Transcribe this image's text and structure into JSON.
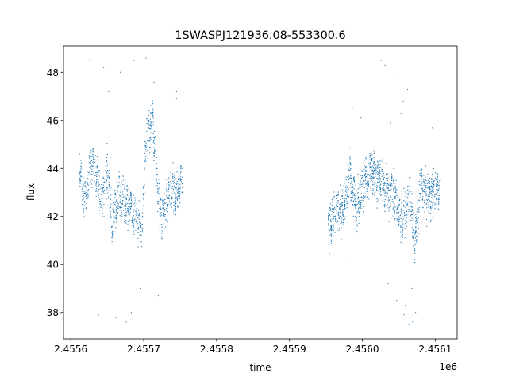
{
  "chart_data": {
    "type": "scatter",
    "title": "1SWASPJ121936.08-553300.6",
    "xlabel": "time",
    "ylabel": "flux",
    "x_offset_label": "1e6",
    "xlim": [
      2.45559,
      2.45613
    ],
    "ylim": [
      36.9,
      49.1
    ],
    "x_ticks": [
      {
        "value": 2.4556,
        "label": "2.4556"
      },
      {
        "value": 2.4557,
        "label": "2.4557"
      },
      {
        "value": 2.4558,
        "label": "2.4558"
      },
      {
        "value": 2.4559,
        "label": "2.4559"
      },
      {
        "value": 2.456,
        "label": "2.4560"
      },
      {
        "value": 2.4561,
        "label": "2.4561"
      }
    ],
    "y_ticks": [
      {
        "value": 38,
        "label": "38"
      },
      {
        "value": 40,
        "label": "40"
      },
      {
        "value": 42,
        "label": "42"
      },
      {
        "value": 44,
        "label": "44"
      },
      {
        "value": 46,
        "label": "46"
      },
      {
        "value": 48,
        "label": "48"
      }
    ],
    "grid": false,
    "point_color": "#1f77b4",
    "segments": [
      {
        "x_start": 2.455612,
        "x_end": 2.455753,
        "n_points": 1100,
        "trend": [
          [
            2.455612,
            44.3
          ],
          [
            2.455618,
            42.6
          ],
          [
            2.45563,
            44.4
          ],
          [
            2.455642,
            42.6
          ],
          [
            2.45565,
            44.0
          ],
          [
            2.455657,
            41.5
          ],
          [
            2.455665,
            43.0
          ],
          [
            2.455675,
            42.6
          ],
          [
            2.455688,
            42.2
          ],
          [
            2.455697,
            41.2
          ],
          [
            2.455703,
            45.0
          ],
          [
            2.455712,
            46.0
          ],
          [
            2.455718,
            43.5
          ],
          [
            2.455725,
            41.8
          ],
          [
            2.455732,
            42.8
          ],
          [
            2.45574,
            43.2
          ],
          [
            2.455746,
            43.0
          ],
          [
            2.455753,
            43.8
          ]
        ],
        "scatter": 0.7
      },
      {
        "x_start": 2.455953,
        "x_end": 2.456106,
        "n_points": 1400,
        "trend": [
          [
            2.455953,
            41.5
          ],
          [
            2.455962,
            42.3
          ],
          [
            2.455972,
            42.2
          ],
          [
            2.455983,
            43.8
          ],
          [
            2.455992,
            42.3
          ],
          [
            2.456003,
            43.6
          ],
          [
            2.456015,
            43.8
          ],
          [
            2.456025,
            43.5
          ],
          [
            2.456035,
            43.0
          ],
          [
            2.456045,
            42.8
          ],
          [
            2.456055,
            41.8
          ],
          [
            2.456065,
            43.0
          ],
          [
            2.456072,
            40.8
          ],
          [
            2.45608,
            43.4
          ],
          [
            2.456092,
            42.8
          ],
          [
            2.456106,
            43.3
          ]
        ],
        "scatter": 0.75
      }
    ],
    "outliers": [
      [
        2.455626,
        48.5
      ],
      [
        2.455645,
        48.2
      ],
      [
        2.455652,
        47.2
      ],
      [
        2.455668,
        48.0
      ],
      [
        2.455687,
        48.5
      ],
      [
        2.455703,
        48.6
      ],
      [
        2.455714,
        47.6
      ],
      [
        2.455745,
        47.2
      ],
      [
        2.455745,
        46.9
      ],
      [
        2.455662,
        37.8
      ],
      [
        2.455676,
        37.6
      ],
      [
        2.455683,
        38.0
      ],
      [
        2.455638,
        37.9
      ],
      [
        2.455696,
        39.0
      ],
      [
        2.45572,
        38.7
      ],
      [
        2.455986,
        46.5
      ],
      [
        2.455998,
        46.1
      ],
      [
        2.456026,
        48.5
      ],
      [
        2.456031,
        48.3
      ],
      [
        2.456049,
        48.0
      ],
      [
        2.456038,
        45.9
      ],
      [
        2.456053,
        46.3
      ],
      [
        2.456062,
        47.3
      ],
      [
        2.456057,
        37.9
      ],
      [
        2.456069,
        37.6
      ],
      [
        2.456064,
        37.5
      ],
      [
        2.456073,
        38.0
      ],
      [
        2.456047,
        38.5
      ],
      [
        2.456035,
        39.2
      ],
      [
        2.456096,
        45.7
      ],
      [
        2.455978,
        40.2
      ],
      [
        2.456068,
        39.0
      ],
      [
        2.456059,
        38.3
      ],
      [
        2.456056,
        46.8
      ]
    ]
  }
}
